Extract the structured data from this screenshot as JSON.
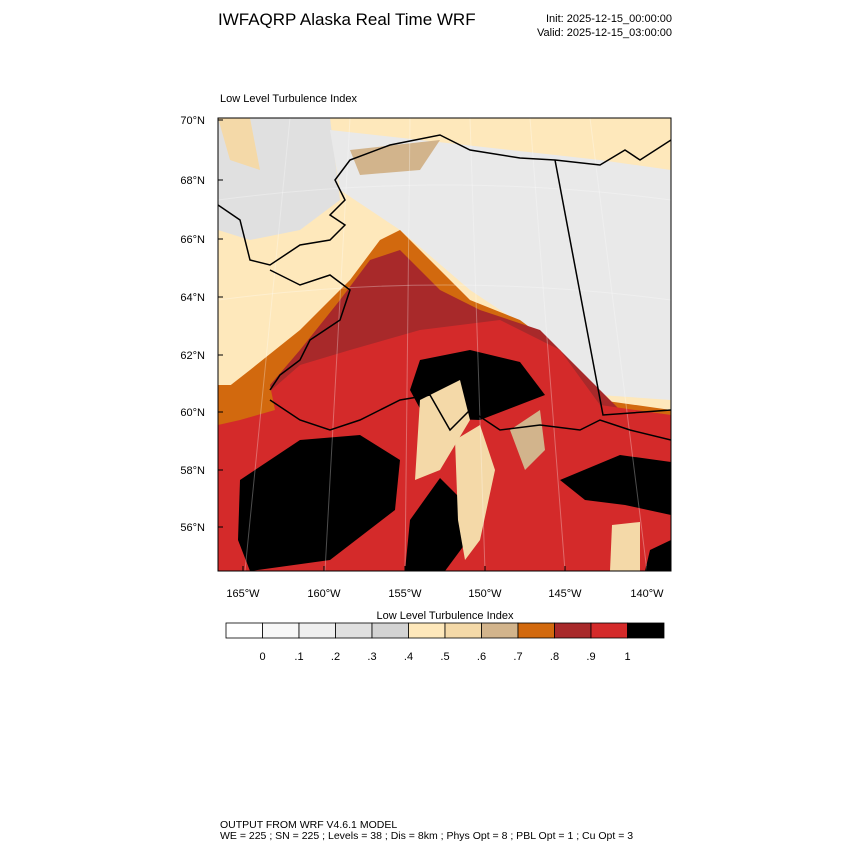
{
  "header": {
    "title": "IWFAQRP Alaska Real Time WRF",
    "init": "Init: 2025-12-15_00:00:00",
    "valid": "Valid: 2025-12-15_03:00:00"
  },
  "map": {
    "title": "Low Level Turbulence Index",
    "lat_labels": [
      "70°N",
      "68°N",
      "66°N",
      "64°N",
      "62°N",
      "60°N",
      "58°N",
      "56°N"
    ],
    "lon_labels": [
      "165°W",
      "160°W",
      "155°W",
      "150°W",
      "145°W",
      "140°W"
    ]
  },
  "colorbar": {
    "title": "Low Level Turbulence Index",
    "colors": [
      "#ffffff",
      "#f7f7f7",
      "#efefef",
      "#e0e0e0",
      "#d3d3d3",
      "#fee8bb",
      "#f4d9a8",
      "#d2b48c",
      "#d2690e",
      "#a8292a",
      "#d42a2a",
      "#000000"
    ],
    "labels": [
      "0",
      ".1",
      ".2",
      ".3",
      ".4",
      ".5",
      ".6",
      ".7",
      ".8",
      ".9",
      "1"
    ]
  },
  "footer": {
    "lines": [
      "OUTPUT FROM WRF V4.6.1 MODEL",
      "WE = 225 ; SN = 225 ; Levels = 38 ; Dis = 8km ; Phys Opt = 8 ; PBL Opt = 1 ; Cu Opt = 3"
    ]
  }
}
